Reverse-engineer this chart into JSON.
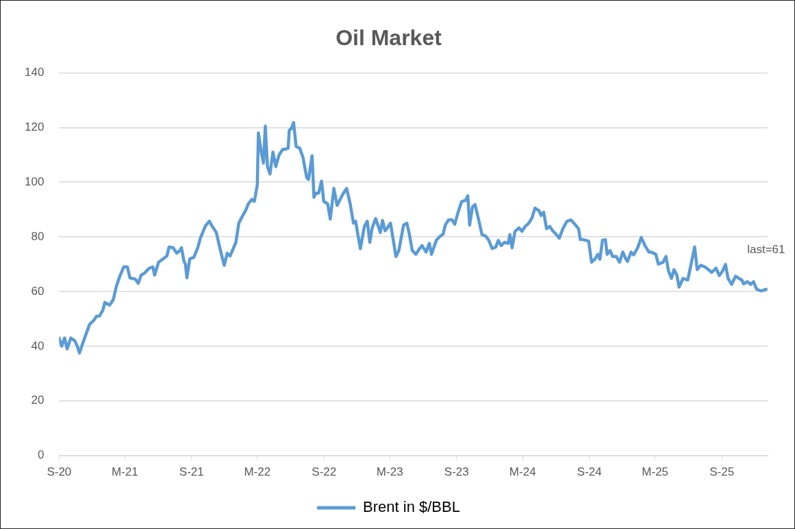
{
  "chart_data": {
    "type": "line",
    "title": "Oil Market",
    "xlim": [
      "2020-09-01",
      "2026-01-05"
    ],
    "xticks": [
      {
        "value": "2020-09-01",
        "label": "S-20"
      },
      {
        "value": "2021-03-01",
        "label": "M-21"
      },
      {
        "value": "2021-09-01",
        "label": "S-21"
      },
      {
        "value": "2022-03-01",
        "label": "M-22"
      },
      {
        "value": "2022-09-01",
        "label": "S-22"
      },
      {
        "value": "2023-03-01",
        "label": "M-23"
      },
      {
        "value": "2023-09-01",
        "label": "S-23"
      },
      {
        "value": "2024-03-01",
        "label": "M-24"
      },
      {
        "value": "2024-09-01",
        "label": "S-24"
      },
      {
        "value": "2025-03-01",
        "label": "M-25"
      },
      {
        "value": "2025-09-01",
        "label": "S-25"
      }
    ],
    "ylim": [
      0,
      140
    ],
    "yticks": [
      0,
      20,
      40,
      60,
      80,
      100,
      120,
      140
    ],
    "grid": "y",
    "legend": "bottom",
    "marker": "none",
    "line_style": "solid",
    "annotations": [
      {
        "text": "last=61",
        "x": "2026-01-01",
        "y": 61
      }
    ],
    "series": [
      {
        "name": "Brent in $/BBL",
        "color": "#5b9bd5",
        "x": [
          "2020-09-01",
          "2020-09-08",
          "2020-09-16",
          "2020-09-23",
          "2020-10-03",
          "2020-10-14",
          "2020-10-21",
          "2020-10-27",
          "2020-11-05",
          "2020-11-13",
          "2020-11-24",
          "2020-12-06",
          "2020-12-13",
          "2020-12-21",
          "2020-12-30",
          "2021-01-05",
          "2021-01-18",
          "2021-01-28",
          "2021-02-06",
          "2021-02-15",
          "2021-02-26",
          "2021-03-08",
          "2021-03-15",
          "2021-03-30",
          "2021-04-07",
          "2021-04-15",
          "2021-04-24",
          "2021-05-07",
          "2021-05-17",
          "2021-05-22",
          "2021-06-02",
          "2021-06-15",
          "2021-06-25",
          "2021-07-01",
          "2021-07-12",
          "2021-07-22",
          "2021-07-31",
          "2021-08-04",
          "2021-08-11",
          "2021-08-15",
          "2021-08-19",
          "2021-08-27",
          "2021-09-07",
          "2021-09-18",
          "2021-09-25",
          "2021-10-09",
          "2021-10-20",
          "2021-10-27",
          "2021-11-08",
          "2021-11-15",
          "2021-11-25",
          "2021-11-30",
          "2021-12-08",
          "2021-12-16",
          "2021-12-24",
          "2022-01-01",
          "2022-01-09",
          "2022-01-20",
          "2022-01-28",
          "2022-02-04",
          "2022-02-14",
          "2022-02-21",
          "2022-03-01",
          "2022-03-04",
          "2022-03-12",
          "2022-03-18",
          "2022-03-23",
          "2022-03-29",
          "2022-04-05",
          "2022-04-13",
          "2022-04-21",
          "2022-04-30",
          "2022-05-10",
          "2022-05-15",
          "2022-05-25",
          "2022-05-28",
          "2022-06-03",
          "2022-06-09",
          "2022-06-16",
          "2022-06-26",
          "2022-07-05",
          "2022-07-15",
          "2022-07-20",
          "2022-07-30",
          "2022-08-04",
          "2022-08-10",
          "2022-08-17",
          "2022-08-25",
          "2022-08-31",
          "2022-09-11",
          "2022-09-18",
          "2022-09-28",
          "2022-10-07",
          "2022-10-15",
          "2022-10-22",
          "2022-11-02",
          "2022-11-12",
          "2022-11-21",
          "2022-11-27",
          "2022-12-02",
          "2022-12-10",
          "2022-12-21",
          "2022-12-29",
          "2023-01-05",
          "2023-01-11",
          "2023-01-21",
          "2023-02-03",
          "2023-02-09",
          "2023-02-16",
          "2023-02-21",
          "2023-03-03",
          "2023-03-18",
          "2023-03-26",
          "2023-04-08",
          "2023-04-17",
          "2023-04-23",
          "2023-05-02",
          "2023-05-12",
          "2023-05-21",
          "2023-05-29",
          "2023-06-09",
          "2023-06-18",
          "2023-06-24",
          "2023-07-07",
          "2023-07-16",
          "2023-07-26",
          "2023-08-01",
          "2023-08-10",
          "2023-08-20",
          "2023-08-27",
          "2023-09-05",
          "2023-09-15",
          "2023-09-26",
          "2023-10-02",
          "2023-10-07",
          "2023-10-15",
          "2023-10-22",
          "2023-11-01",
          "2023-11-10",
          "2023-11-20",
          "2023-11-29",
          "2023-12-08",
          "2023-12-18",
          "2023-12-25",
          "2024-01-02",
          "2024-01-11",
          "2024-01-21",
          "2024-01-26",
          "2024-02-01",
          "2024-02-09",
          "2024-02-20",
          "2024-02-28",
          "2024-03-08",
          "2024-03-18",
          "2024-03-27",
          "2024-04-04",
          "2024-04-15",
          "2024-04-21",
          "2024-04-28",
          "2024-05-06",
          "2024-05-15",
          "2024-05-23",
          "2024-06-01",
          "2024-06-10",
          "2024-06-20",
          "2024-07-01",
          "2024-07-12",
          "2024-07-23",
          "2024-08-02",
          "2024-08-07",
          "2024-08-15",
          "2024-08-30",
          "2024-09-07",
          "2024-09-16",
          "2024-09-24",
          "2024-09-30",
          "2024-10-07",
          "2024-10-15",
          "2024-10-20",
          "2024-10-28",
          "2024-11-04",
          "2024-11-14",
          "2024-11-23",
          "2024-12-02",
          "2024-12-10",
          "2024-12-15",
          "2024-12-25",
          "2025-01-01",
          "2025-01-13",
          "2025-01-22",
          "2025-02-01",
          "2025-02-12",
          "2025-02-19",
          "2025-03-03",
          "2025-03-10",
          "2025-03-23",
          "2025-03-31",
          "2025-04-07",
          "2025-04-15",
          "2025-04-22",
          "2025-04-30",
          "2025-05-06",
          "2025-05-17",
          "2025-05-30",
          "2025-06-05",
          "2025-06-18",
          "2025-06-25",
          "2025-07-05",
          "2025-07-16",
          "2025-07-26",
          "2025-08-04",
          "2025-08-16",
          "2025-08-25",
          "2025-09-03",
          "2025-09-11",
          "2025-09-18",
          "2025-09-28",
          "2025-10-09",
          "2025-10-18",
          "2025-10-26",
          "2025-10-31",
          "2025-11-10",
          "2025-11-19",
          "2025-11-27",
          "2025-12-06",
          "2025-12-18",
          "2026-01-01"
        ],
        "values": [
          43,
          40,
          43,
          39,
          43,
          42,
          40,
          37.5,
          41,
          44,
          48,
          49.5,
          51,
          51,
          53,
          56,
          55,
          57,
          62,
          65.5,
          69,
          69,
          65,
          64.5,
          63,
          66,
          66.7,
          68.5,
          69,
          66,
          70.7,
          72,
          73,
          76.3,
          76,
          74,
          75,
          76,
          71,
          70,
          65,
          72,
          72.5,
          76,
          79.5,
          84,
          85.7,
          84,
          81.6,
          77.6,
          72,
          69.6,
          74,
          73,
          75.5,
          78,
          85,
          87.8,
          89.7,
          92,
          93.7,
          93,
          99,
          118,
          111,
          107,
          120.5,
          105.7,
          103,
          111,
          105.7,
          110,
          112,
          112,
          112.4,
          119,
          119.6,
          121.8,
          113,
          112.4,
          109,
          101.7,
          101,
          109.7,
          94.5,
          96,
          96,
          100.4,
          93,
          92,
          86.5,
          97.7,
          91.5,
          93.6,
          95.5,
          97.7,
          92,
          85,
          85.7,
          81.6,
          75.7,
          83.8,
          85.7,
          78,
          83,
          86.7,
          81.6,
          86,
          82.2,
          83,
          85,
          72.8,
          75,
          84.3,
          85,
          81.6,
          75,
          73.6,
          75.5,
          76.8,
          74.4,
          77.6,
          73.6,
          78.7,
          80,
          81,
          84.3,
          86.2,
          86.2,
          84.6,
          88.9,
          92.9,
          93.4,
          95,
          84.3,
          91,
          91.8,
          86.2,
          80.8,
          80.3,
          78.7,
          75.7,
          76.3,
          78.7,
          76.8,
          78,
          77.6,
          80.8,
          76,
          82,
          83.3,
          82,
          83.8,
          85,
          87,
          90.5,
          89.6,
          87.8,
          89,
          83,
          83.8,
          82.2,
          81,
          79.5,
          83,
          85.7,
          86.2,
          84.6,
          83,
          79,
          79,
          78.4,
          70.7,
          71.8,
          73.6,
          71.8,
          78.7,
          79,
          73.6,
          75,
          72.8,
          72.8,
          70.7,
          74.4,
          72,
          71,
          74.4,
          73.4,
          76.3,
          79.8,
          76.8,
          74.4,
          74.4,
          73.6,
          70,
          70.7,
          72.8,
          67.5,
          64.8,
          68,
          66,
          61.6,
          64.8,
          64.2,
          68,
          76.3,
          68,
          69.6,
          69,
          68,
          67,
          68.5,
          65.8,
          67.5,
          69.9,
          64.8,
          62.6,
          65.6,
          64.8,
          64.2,
          62.8,
          63.6,
          62.6,
          63.6,
          60.8,
          60.2,
          60.8
        ]
      }
    ]
  }
}
